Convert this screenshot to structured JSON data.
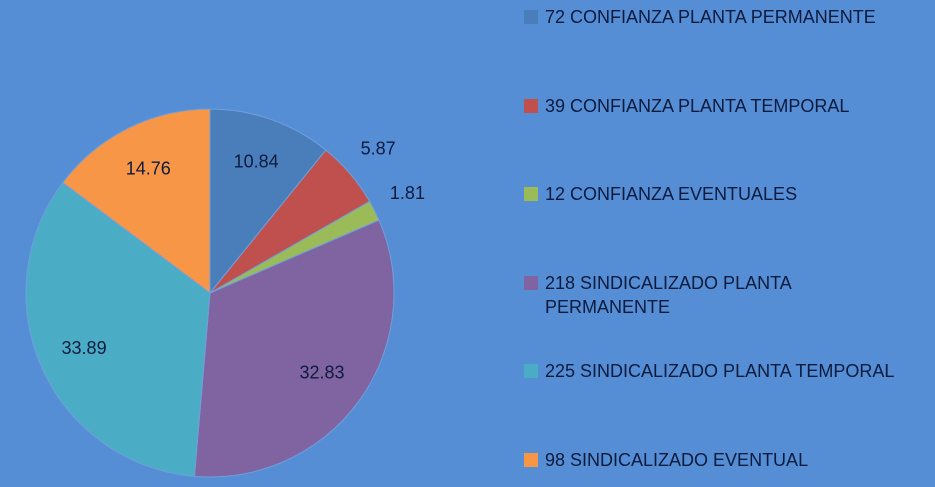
{
  "chart_data": {
    "type": "pie",
    "categories": [
      "72 CONFIANZA PLANTA PERMANENTE",
      "39 CONFIANZA PLANTA TEMPORAL",
      "12 CONFIANZA EVENTUALES",
      "218 SINDICALIZADO PLANTA PERMANENTE",
      "225 SINDICALIZADO PLANTA TEMPORAL",
      "98 SINDICALIZADO EVENTUAL"
    ],
    "values": [
      10.84,
      5.87,
      1.81,
      32.83,
      33.89,
      14.76
    ],
    "colors": [
      "#4a7ebb",
      "#c0504d",
      "#9bbb59",
      "#8064a2",
      "#4bacc6",
      "#f79646"
    ],
    "legend": "right"
  }
}
